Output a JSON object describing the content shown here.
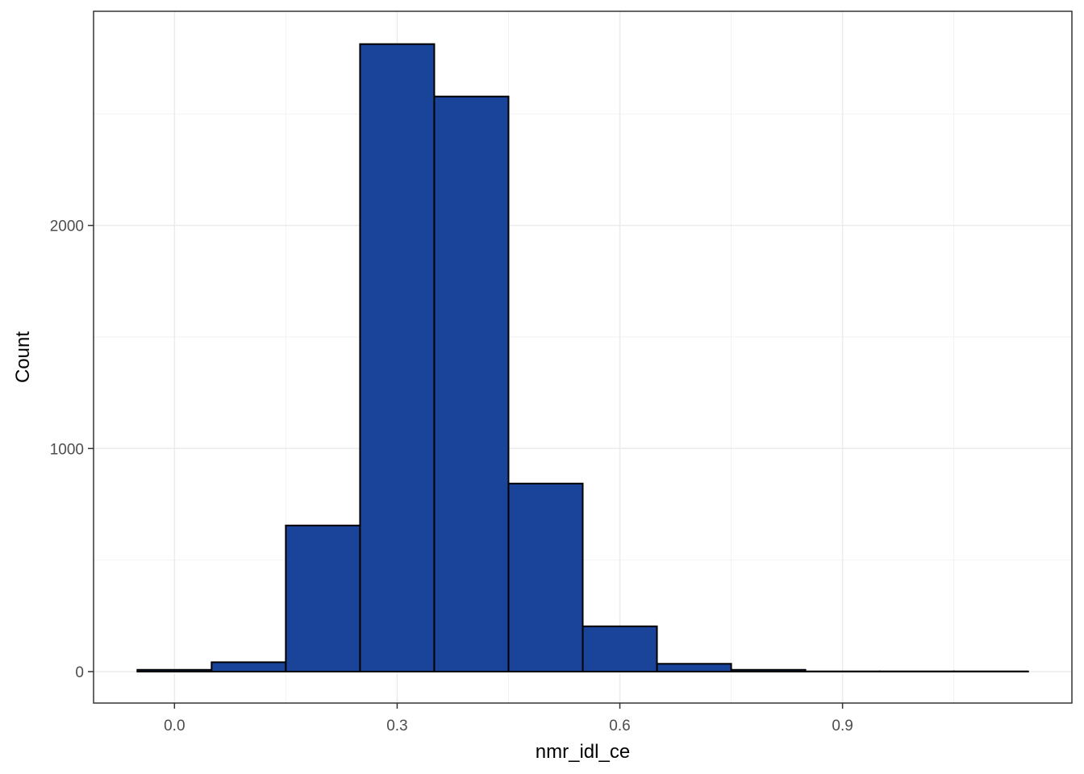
{
  "chart_data": {
    "type": "bar",
    "subtype": "histogram",
    "title": "",
    "xlabel": "nmr_idl_ce",
    "ylabel": "Count",
    "bins": [
      {
        "x0": -0.05,
        "x1": 0.05,
        "count": 8
      },
      {
        "x0": 0.05,
        "x1": 0.15,
        "count": 42
      },
      {
        "x0": 0.15,
        "x1": 0.25,
        "count": 655
      },
      {
        "x0": 0.25,
        "x1": 0.35,
        "count": 2813
      },
      {
        "x0": 0.35,
        "x1": 0.45,
        "count": 2578
      },
      {
        "x0": 0.45,
        "x1": 0.55,
        "count": 843
      },
      {
        "x0": 0.55,
        "x1": 0.65,
        "count": 203
      },
      {
        "x0": 0.65,
        "x1": 0.75,
        "count": 35
      },
      {
        "x0": 0.75,
        "x1": 0.85,
        "count": 8
      },
      {
        "x0": 0.85,
        "x1": 0.95,
        "count": 1
      },
      {
        "x0": 0.95,
        "x1": 1.05,
        "count": 1
      },
      {
        "x0": 1.05,
        "x1": 1.15,
        "count": 1
      }
    ],
    "xlim": [
      -0.109,
      1.209
    ],
    "ylim": [
      -141,
      2960
    ],
    "x_ticks": [
      {
        "value": 0.0,
        "label": "0.0"
      },
      {
        "value": 0.3,
        "label": "0.3"
      },
      {
        "value": 0.6,
        "label": "0.6"
      },
      {
        "value": 0.9,
        "label": "0.9"
      }
    ],
    "x_minor_ticks": [
      0.15,
      0.45,
      0.75,
      1.05
    ],
    "y_ticks": [
      {
        "value": 0,
        "label": "0"
      },
      {
        "value": 1000,
        "label": "1000"
      },
      {
        "value": 2000,
        "label": "2000"
      }
    ],
    "y_minor_ticks": [
      500,
      1500,
      2500
    ],
    "grid": true,
    "legend": "none",
    "colors": {
      "bar_fill": "#1a4499",
      "bar_outline": "#000000",
      "grid_major": "#ebebeb",
      "grid_minor": "#f2f2f2",
      "panel_border": "#333333",
      "tick_text": "#4d4d4d"
    }
  }
}
